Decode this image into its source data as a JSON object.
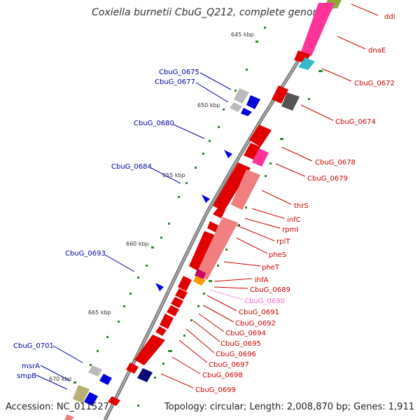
{
  "title": "Coxiella burnetii CbuG_Q212, complete genome",
  "footer": {
    "accession": "Accession: NC_011527",
    "topology": "Topology: circular; Length: 2,008,870 bp; Genes: 1,911"
  },
  "colors": {
    "forward_label": "#cc0000",
    "reverse_label": "#0000aa",
    "highlight_label": "#ff66cc"
  },
  "ticks": [
    "645 kbp",
    "650 kbp",
    "655 kbp",
    "660 kbp",
    "665 kbp",
    "670 kbp"
  ],
  "labels": {
    "right": [
      "ddl",
      "dnaE",
      "CbuG_0672",
      "CbuG_0674",
      "CbuG_0678",
      "CbuG_0679",
      "thrS",
      "infC",
      "rpmI",
      "rplT",
      "pheS",
      "pheT",
      "ihfA",
      "CbuG_0689",
      "CbuG_0690",
      "CbuG_0691",
      "CbuG_0692",
      "CbuG_0694",
      "CbuG_0695",
      "CbuG_0696",
      "CbuG_0697",
      "CbuG_0698",
      "CbuG_0699"
    ],
    "left": [
      "CbuG_0675",
      "CbuG_0677",
      "CbuG_0680",
      "CbuG_0684",
      "CbuG_0693",
      "CbuG_0701",
      "msrA",
      "smpB"
    ]
  }
}
